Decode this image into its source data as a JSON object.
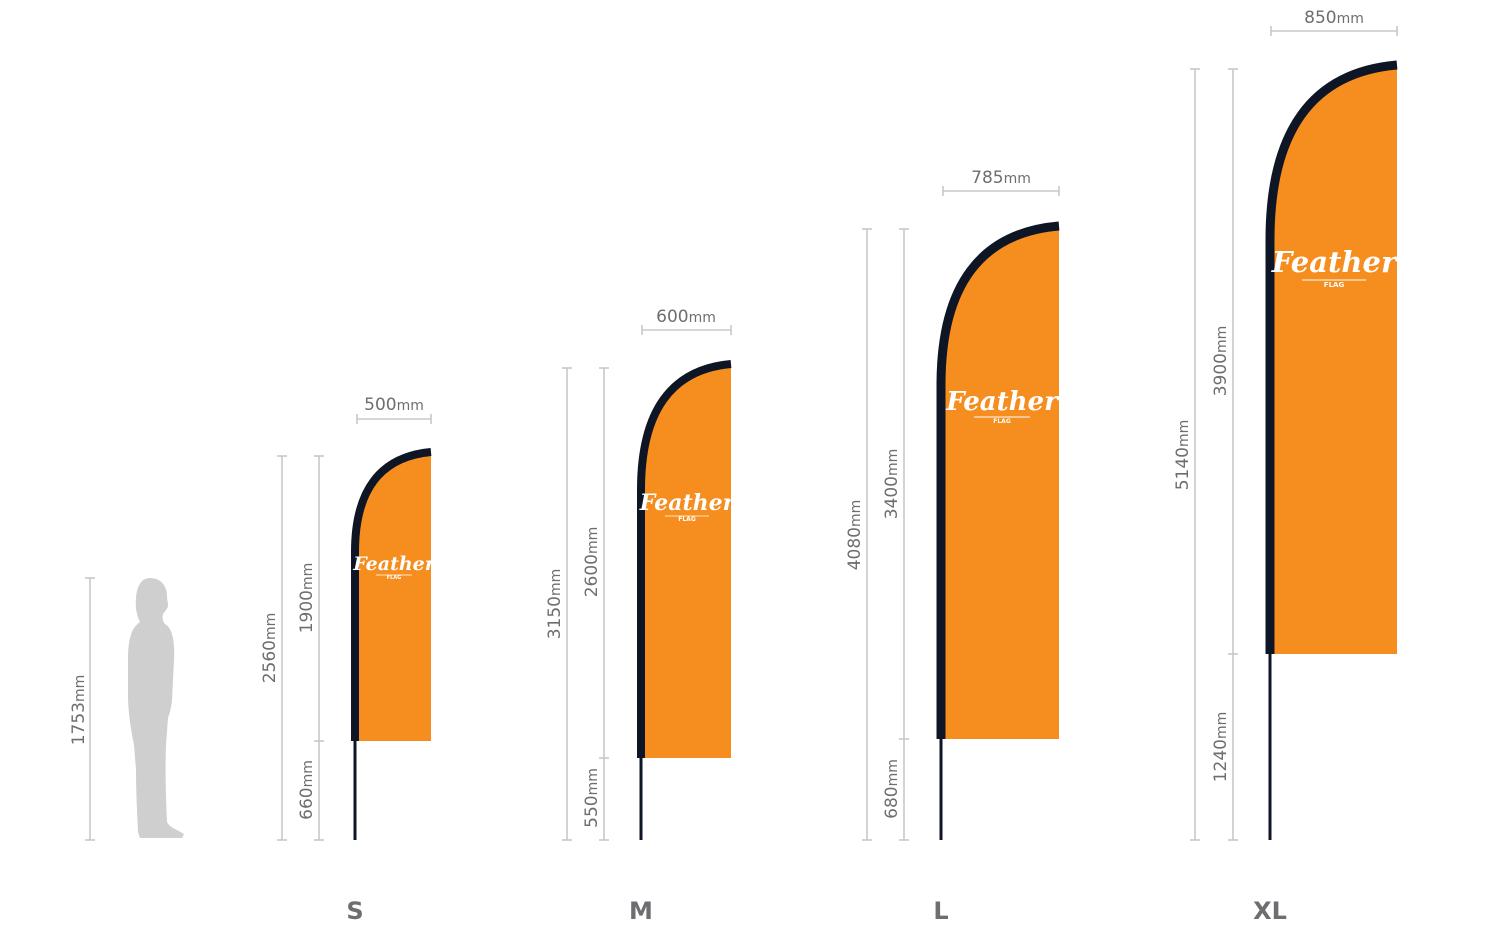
{
  "person": {
    "height_label": "1753",
    "unit": "mm"
  },
  "flags": [
    {
      "size": "S",
      "width": "500",
      "total": "2560",
      "flag": "1900",
      "pole": "660",
      "unit": "mm",
      "logo": {
        "title": "Feather",
        "sub": "FLAG"
      }
    },
    {
      "size": "M",
      "width": "600",
      "total": "3150",
      "flag": "2600",
      "pole": "550",
      "unit": "mm",
      "logo": {
        "title": "Feather",
        "sub": "FLAG"
      }
    },
    {
      "size": "L",
      "width": "785",
      "total": "4080",
      "flag": "3400",
      "pole": "680",
      "unit": "mm",
      "logo": {
        "title": "Feather",
        "sub": "FLAG"
      }
    },
    {
      "size": "XL",
      "width": "850",
      "total": "5140",
      "flag": "3900",
      "pole": "1240",
      "unit": "mm",
      "logo": {
        "title": "Feather",
        "sub": "FLAG"
      }
    }
  ],
  "colors": {
    "flag_orange": "#f68d1f",
    "pole_navy": "#0e1626",
    "dim_line": "#c7c8ca",
    "text_gray": "#6d6e71",
    "person_gray": "#cfcfcf"
  }
}
